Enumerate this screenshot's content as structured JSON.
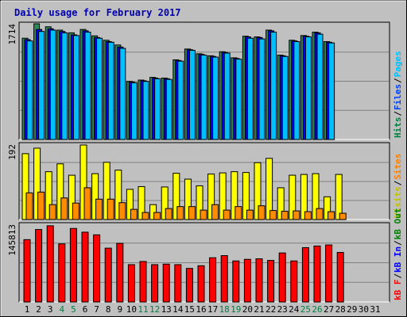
{
  "chart_data": {
    "type": "bar",
    "title": "Daily usage for February 2017",
    "days": [
      "1",
      "2",
      "3",
      "4",
      "5",
      "6",
      "7",
      "8",
      "9",
      "10",
      "11",
      "12",
      "13",
      "14",
      "15",
      "16",
      "17",
      "18",
      "19",
      "20",
      "21",
      "22",
      "23",
      "24",
      "25",
      "26",
      "27",
      "28",
      "29",
      "30",
      "31"
    ],
    "weekend_days": [
      "4",
      "5",
      "11",
      "12",
      "18",
      "19",
      "25",
      "26"
    ],
    "panels": [
      {
        "name": "hits-files-pages",
        "max_label": "1714",
        "ymax": 1714,
        "legend": [
          {
            "label": "Hits",
            "color": "#008040"
          },
          {
            "label": "/",
            "color": "#000000"
          },
          {
            "label": "Files",
            "color": "#0040ff"
          },
          {
            "label": "/",
            "color": "#000000"
          },
          {
            "label": "Pages",
            "color": "#00c0ff"
          }
        ],
        "series": [
          {
            "name": "Hits",
            "color": "#2e8b57",
            "values": [
              1500,
              1714,
              1670,
              1620,
              1580,
              1630,
              1535,
              1470,
              1400,
              860,
              880,
              920,
              910,
              1180,
              1340,
              1270,
              1240,
              1300,
              1210,
              1530,
              1520,
              1620,
              1250,
              1470,
              1540,
              1590,
              1450,
              null,
              null,
              null,
              null
            ]
          },
          {
            "name": "Files",
            "color": "#0000ff",
            "values": [
              1480,
              1630,
              1640,
              1600,
              1550,
              1610,
              1510,
              1450,
              1370,
              850,
              870,
              910,
              900,
              1170,
              1330,
              1260,
              1230,
              1290,
              1200,
              1520,
              1510,
              1610,
              1240,
              1460,
              1530,
              1580,
              1440,
              null,
              null,
              null,
              null
            ]
          },
          {
            "name": "Pages",
            "color": "#00bfff",
            "values": [
              1460,
              1600,
              1620,
              1580,
              1540,
              1590,
              1500,
              1440,
              1350,
              840,
              860,
              900,
              890,
              1160,
              1320,
              1250,
              1220,
              1280,
              1190,
              1500,
              1490,
              1590,
              1230,
              1450,
              1520,
              1560,
              1430,
              null,
              null,
              null,
              null
            ]
          }
        ]
      },
      {
        "name": "visits-sites",
        "max_label": "192",
        "ymax": 192,
        "legend": [
          {
            "label": "Visits",
            "color": "#c0c000"
          },
          {
            "label": "/",
            "color": "#000000"
          },
          {
            "label": "Sites",
            "color": "#ff8000"
          }
        ],
        "series": [
          {
            "name": "Visits",
            "color": "#ffff00",
            "values": [
              168,
              182,
              122,
              142,
              113,
              190,
              117,
              146,
              126,
              77,
              84,
              38,
              83,
              118,
              103,
              86,
              116,
              119,
              122,
              120,
              145,
              156,
              81,
              113,
              115,
              117,
              58,
              115,
              null,
              null,
              null
            ]
          },
          {
            "name": "Sites",
            "color": "#ff8c00",
            "values": [
              68,
              70,
              38,
              55,
              42,
              81,
              52,
              52,
              43,
              26,
              18,
              18,
              28,
              33,
              33,
              24,
              38,
              24,
              33,
              24,
              35,
              23,
              21,
              22,
              20,
              28,
              20,
              16,
              null,
              null,
              null
            ]
          }
        ]
      },
      {
        "name": "kbytes",
        "max_label": "145813",
        "ymax": 145813,
        "legend": [
          {
            "label": "kB F",
            "color": "#ff0000"
          },
          {
            "label": "/",
            "color": "#000000"
          },
          {
            "label": "kB In",
            "color": "#0000ff"
          },
          {
            "label": "/",
            "color": "#000000"
          },
          {
            "label": "kB Out",
            "color": "#008000"
          }
        ],
        "series": [
          {
            "name": "kB F",
            "color": "#ff0000",
            "values": [
              117000,
              136000,
              143000,
              109000,
              138000,
              131000,
              126000,
              101000,
              110000,
              70000,
              76000,
              70000,
              71000,
              70000,
              63000,
              68000,
              83000,
              87000,
              77000,
              80000,
              81000,
              78000,
              92000,
              77000,
              102000,
              105000,
              107000,
              93000,
              null,
              null,
              null
            ]
          }
        ]
      }
    ]
  }
}
